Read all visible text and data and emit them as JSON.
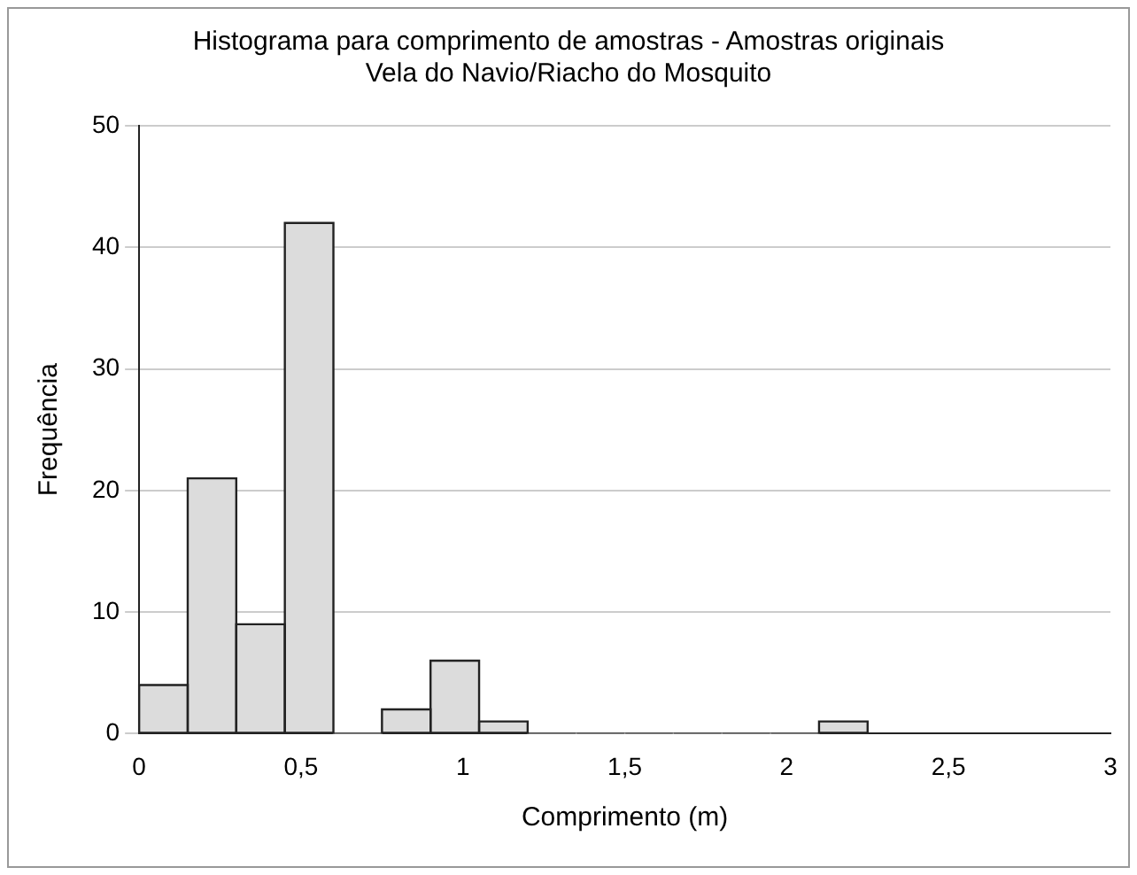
{
  "chart_data": {
    "type": "histogram",
    "title": "Histograma para comprimento de amostras - Amostras originais",
    "subtitle": "Vela do Navio/Riacho do Mosquito",
    "xlabel": "Comprimento (m)",
    "ylabel": "Frequência",
    "bins": [
      0,
      0.15,
      0.3,
      0.45,
      0.6,
      0.75,
      0.9,
      1.05,
      1.2,
      1.35,
      1.5,
      1.65,
      1.8,
      1.95,
      2.1,
      2.25
    ],
    "values": [
      4,
      21,
      9,
      42,
      0,
      2,
      6,
      1,
      0,
      0,
      0,
      0,
      0,
      0,
      1
    ],
    "color": "#dcdcdc",
    "xlim": [
      0,
      3
    ],
    "xticks": [
      0,
      {
        "value": 0.5,
        "label": "0,5"
      },
      1,
      {
        "value": 1.5,
        "label": "1,5"
      },
      2,
      {
        "value": 2.5,
        "label": "2,5"
      },
      3
    ],
    "ylim": [
      0,
      50
    ],
    "yticks": [
      0,
      10,
      20,
      30,
      40,
      50
    ],
    "grid": "y",
    "legend": false
  }
}
